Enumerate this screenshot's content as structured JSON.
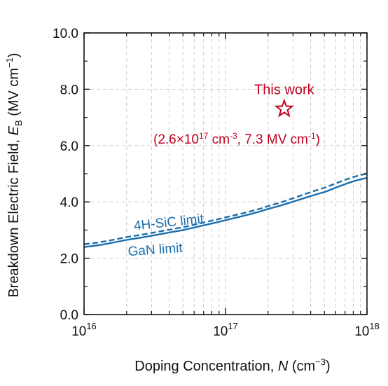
{
  "chart_data": {
    "type": "line",
    "xlabel": {
      "main": "Doping Concentration, ",
      "var": "N",
      "unit": " (cm",
      "unit_exp": "−3",
      "close": ")"
    },
    "ylabel": {
      "main": "Breakdown Electric Field, ",
      "var": "E",
      "sub": "B",
      "unit": " (MV cm",
      "unit_exp": "−1",
      "close": ")"
    },
    "x_scale": "log",
    "xlim": [
      1e+16,
      1e+18
    ],
    "x_ticks": [
      {
        "base": "10",
        "exp": "16",
        "value": 1e+16
      },
      {
        "base": "10",
        "exp": "17",
        "value": 1e+17
      },
      {
        "base": "10",
        "exp": "18",
        "value": 1e+18
      }
    ],
    "ylim": [
      0,
      10
    ],
    "y_ticks": [
      "0.0",
      "2.0",
      "4.0",
      "6.0",
      "8.0",
      "10.0"
    ],
    "grid": true,
    "series": [
      {
        "name": "4H-SiC limit",
        "style": "dashed",
        "color": "#1a6fae",
        "x": [
          1e+16,
          2e+16,
          5e+16,
          1e+17,
          2e+17,
          5e+17,
          1e+18
        ],
        "y": [
          2.5,
          2.75,
          3.1,
          3.45,
          3.85,
          4.5,
          5.0
        ]
      },
      {
        "name": "GaN limit",
        "style": "solid",
        "color": "#1a6fae",
        "x": [
          1e+16,
          2e+16,
          5e+16,
          1e+17,
          2e+17,
          5e+17,
          1e+18
        ],
        "y": [
          2.4,
          2.65,
          3.0,
          3.35,
          3.75,
          4.35,
          4.85
        ]
      }
    ],
    "points": [
      {
        "label": "This work",
        "x": 2.6e+17,
        "y": 7.3,
        "marker": "star",
        "color": "#c00020"
      }
    ],
    "annotation": {
      "open": "(2.6×10",
      "exp1": "17",
      "mid": " cm",
      "exp2": "-3",
      "mid2": ", 7.3 MV cm",
      "exp3": "-1",
      "close": ")"
    }
  }
}
